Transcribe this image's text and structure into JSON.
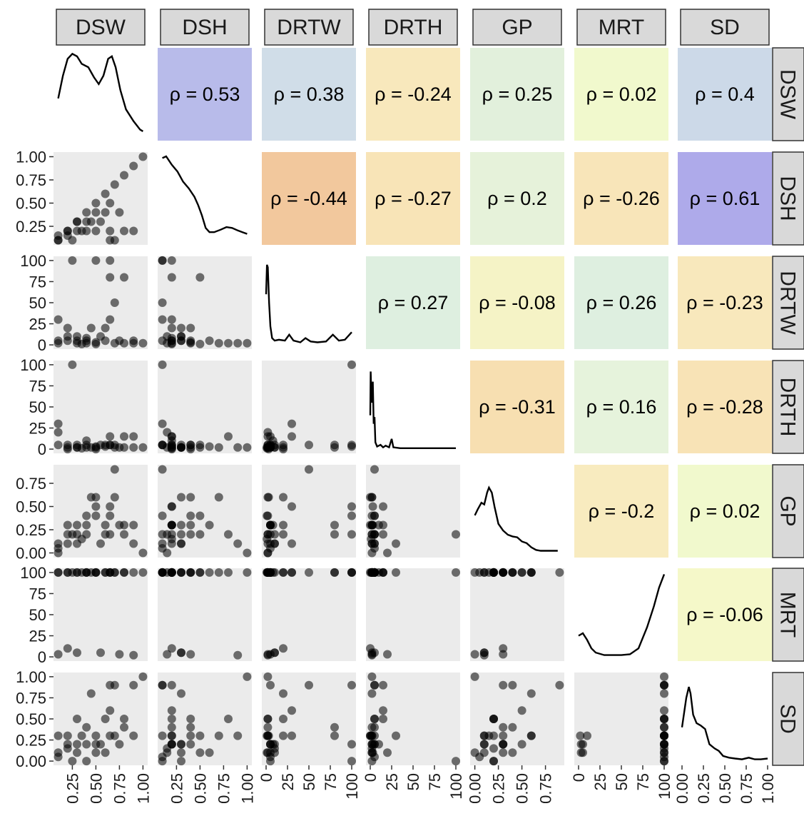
{
  "chart_data": {
    "type": "scatter",
    "variables": [
      "DSW",
      "DSH",
      "DRTW",
      "DRTH",
      "GP",
      "MRT",
      "SD"
    ],
    "correlations": [
      {
        "row": "DSW",
        "col": "DSH",
        "label": "ρ = 0.53",
        "value": 0.53,
        "color": "#b8bbea"
      },
      {
        "row": "DSW",
        "col": "DRTW",
        "label": "ρ = 0.38",
        "value": 0.38,
        "color": "#d0dde8"
      },
      {
        "row": "DSW",
        "col": "DRTH",
        "label": "ρ = -0.24",
        "value": -0.24,
        "color": "#f8e8bc"
      },
      {
        "row": "DSW",
        "col": "GP",
        "label": "ρ = 0.25",
        "value": 0.25,
        "color": "#e2f0dc"
      },
      {
        "row": "DSW",
        "col": "MRT",
        "label": "ρ = 0.02",
        "value": 0.02,
        "color": "#f1f9cd"
      },
      {
        "row": "DSW",
        "col": "SD",
        "label": "ρ = 0.4",
        "value": 0.4,
        "color": "#ccd9e8"
      },
      {
        "row": "DSH",
        "col": "DRTW",
        "label": "ρ = -0.44",
        "value": -0.44,
        "color": "#f2c89d"
      },
      {
        "row": "DSH",
        "col": "DRTH",
        "label": "ρ = -0.27",
        "value": -0.27,
        "color": "#f8e4b7"
      },
      {
        "row": "DSH",
        "col": "GP",
        "label": "ρ = 0.2",
        "value": 0.2,
        "color": "#e6f2da"
      },
      {
        "row": "DSH",
        "col": "MRT",
        "label": "ρ = -0.26",
        "value": -0.26,
        "color": "#f8e5b9"
      },
      {
        "row": "DSH",
        "col": "SD",
        "label": "ρ = 0.61",
        "value": 0.61,
        "color": "#aeaaea"
      },
      {
        "row": "DRTW",
        "col": "DRTH",
        "label": "ρ = 0.27",
        "value": 0.27,
        "color": "#deefe0"
      },
      {
        "row": "DRTW",
        "col": "GP",
        "label": "ρ = -0.08",
        "value": -0.08,
        "color": "#f5f3c6"
      },
      {
        "row": "DRTW",
        "col": "MRT",
        "label": "ρ = 0.26",
        "value": 0.26,
        "color": "#deefe0"
      },
      {
        "row": "DRTW",
        "col": "SD",
        "label": "ρ = -0.23",
        "value": -0.23,
        "color": "#f8e8bc"
      },
      {
        "row": "DRTH",
        "col": "GP",
        "label": "ρ = -0.31",
        "value": -0.31,
        "color": "#f7dfb1"
      },
      {
        "row": "DRTH",
        "col": "MRT",
        "label": "ρ = 0.16",
        "value": 0.16,
        "color": "#e6f3dc"
      },
      {
        "row": "DRTH",
        "col": "SD",
        "label": "ρ = -0.28",
        "value": -0.28,
        "color": "#f8e3b6"
      },
      {
        "row": "GP",
        "col": "MRT",
        "label": "ρ = -0.2",
        "value": -0.2,
        "color": "#f8ebbf"
      },
      {
        "row": "GP",
        "col": "SD",
        "label": "ρ = 0.02",
        "value": 0.02,
        "color": "#f1f9cd"
      },
      {
        "row": "MRT",
        "col": "SD",
        "label": "ρ = -0.06",
        "value": -0.06,
        "color": "#f5f8c9"
      }
    ],
    "axes": {
      "DSW": {
        "range": [
          0.05,
          1.05
        ],
        "ticks": [
          0.25,
          0.5,
          0.75,
          1.0
        ],
        "tick_labels": [
          "0.25",
          "0.50",
          "0.75",
          "1.00"
        ]
      },
      "DSH": {
        "range": [
          0.05,
          1.05
        ],
        "ticks": [
          0.25,
          0.5,
          0.75,
          1.0
        ],
        "tick_labels": [
          "0.25",
          "0.50",
          "0.75",
          "1.00"
        ]
      },
      "DRTW": {
        "range": [
          -5,
          105
        ],
        "ticks": [
          0,
          25,
          50,
          75,
          100
        ],
        "tick_labels": [
          "0",
          "25",
          "50",
          "75",
          "100"
        ]
      },
      "DRTH": {
        "range": [
          -5,
          105
        ],
        "ticks": [
          0,
          25,
          50,
          75,
          100
        ],
        "tick_labels": [
          "0",
          "25",
          "50",
          "75",
          "100"
        ]
      },
      "GP": {
        "range": [
          -0.05,
          0.95
        ],
        "ticks": [
          0,
          0.25,
          0.5,
          0.75
        ],
        "tick_labels": [
          "0.00",
          "0.25",
          "0.50",
          "0.75"
        ]
      },
      "MRT": {
        "range": [
          -5,
          105
        ],
        "ticks": [
          0,
          25,
          50,
          75,
          100
        ],
        "tick_labels": [
          "0",
          "25",
          "50",
          "75",
          "100"
        ]
      },
      "SD": {
        "range": [
          -0.05,
          1.05
        ],
        "ticks": [
          0,
          0.25,
          0.5,
          0.75,
          1.0
        ],
        "tick_labels": [
          "0.00",
          "0.25",
          "0.50",
          "0.75",
          "1.00"
        ]
      }
    },
    "densities": {
      "DSW": [
        [
          0.1,
          0.45
        ],
        [
          0.15,
          0.72
        ],
        [
          0.2,
          0.92
        ],
        [
          0.25,
          0.98
        ],
        [
          0.3,
          0.95
        ],
        [
          0.35,
          0.86
        ],
        [
          0.42,
          0.82
        ],
        [
          0.48,
          0.7
        ],
        [
          0.53,
          0.62
        ],
        [
          0.58,
          0.72
        ],
        [
          0.63,
          0.92
        ],
        [
          0.67,
          0.95
        ],
        [
          0.71,
          0.82
        ],
        [
          0.76,
          0.55
        ],
        [
          0.82,
          0.32
        ],
        [
          0.9,
          0.18
        ],
        [
          0.97,
          0.08
        ],
        [
          1.0,
          0.06
        ]
      ],
      "DSH": [
        [
          0.1,
          0.98
        ],
        [
          0.14,
          1.0
        ],
        [
          0.2,
          0.9
        ],
        [
          0.26,
          0.82
        ],
        [
          0.32,
          0.7
        ],
        [
          0.38,
          0.62
        ],
        [
          0.44,
          0.52
        ],
        [
          0.48,
          0.42
        ],
        [
          0.52,
          0.3
        ],
        [
          0.56,
          0.15
        ],
        [
          0.6,
          0.1
        ],
        [
          0.65,
          0.1
        ],
        [
          0.72,
          0.13
        ],
        [
          0.78,
          0.16
        ],
        [
          0.84,
          0.15
        ],
        [
          0.9,
          0.12
        ],
        [
          0.95,
          0.1
        ],
        [
          1.0,
          0.08
        ]
      ],
      "DRTW": [
        [
          0,
          0.6
        ],
        [
          1,
          0.95
        ],
        [
          2,
          0.92
        ],
        [
          3.5,
          0.5
        ],
        [
          5,
          0.22
        ],
        [
          7,
          0.08
        ],
        [
          10,
          0.05
        ],
        [
          15,
          0.06
        ],
        [
          22,
          0.05
        ],
        [
          27,
          0.12
        ],
        [
          32,
          0.05
        ],
        [
          40,
          0.03
        ],
        [
          46,
          0.08
        ],
        [
          52,
          0.04
        ],
        [
          60,
          0.03
        ],
        [
          70,
          0.04
        ],
        [
          78,
          0.12
        ],
        [
          85,
          0.05
        ],
        [
          92,
          0.06
        ],
        [
          100,
          0.15
        ]
      ],
      "DRTH": [
        [
          0,
          0.4
        ],
        [
          0.5,
          0.92
        ],
        [
          1,
          0.75
        ],
        [
          2,
          0.55
        ],
        [
          3,
          0.8
        ],
        [
          4,
          0.3
        ],
        [
          5,
          0.38
        ],
        [
          6,
          0.08
        ],
        [
          8,
          0.03
        ],
        [
          12,
          0.05
        ],
        [
          15,
          0.02
        ],
        [
          18,
          0.04
        ],
        [
          22,
          0.02
        ],
        [
          25,
          0.12
        ],
        [
          27,
          0.02
        ],
        [
          35,
          0.01
        ],
        [
          50,
          0.01
        ],
        [
          75,
          0.01
        ],
        [
          100,
          0.01
        ]
      ],
      "GP": [
        [
          0,
          0.45
        ],
        [
          0.03,
          0.52
        ],
        [
          0.07,
          0.6
        ],
        [
          0.1,
          0.58
        ],
        [
          0.13,
          0.72
        ],
        [
          0.15,
          0.78
        ],
        [
          0.18,
          0.72
        ],
        [
          0.21,
          0.55
        ],
        [
          0.25,
          0.35
        ],
        [
          0.3,
          0.27
        ],
        [
          0.35,
          0.22
        ],
        [
          0.4,
          0.2
        ],
        [
          0.45,
          0.19
        ],
        [
          0.5,
          0.14
        ],
        [
          0.55,
          0.12
        ],
        [
          0.6,
          0.07
        ],
        [
          0.65,
          0.04
        ],
        [
          0.7,
          0.03
        ],
        [
          0.8,
          0.03
        ],
        [
          0.88,
          0.03
        ]
      ],
      "MRT": [
        [
          0,
          0.25
        ],
        [
          5,
          0.28
        ],
        [
          10,
          0.2
        ],
        [
          15,
          0.1
        ],
        [
          20,
          0.05
        ],
        [
          30,
          0.02
        ],
        [
          40,
          0.02
        ],
        [
          50,
          0.02
        ],
        [
          60,
          0.03
        ],
        [
          70,
          0.1
        ],
        [
          80,
          0.35
        ],
        [
          88,
          0.6
        ],
        [
          94,
          0.82
        ],
        [
          100,
          0.98
        ]
      ],
      "SD": [
        [
          0,
          0.4
        ],
        [
          0.05,
          0.75
        ],
        [
          0.08,
          0.88
        ],
        [
          0.1,
          0.8
        ],
        [
          0.13,
          0.55
        ],
        [
          0.17,
          0.45
        ],
        [
          0.22,
          0.42
        ],
        [
          0.27,
          0.38
        ],
        [
          0.32,
          0.2
        ],
        [
          0.38,
          0.15
        ],
        [
          0.43,
          0.12
        ],
        [
          0.48,
          0.06
        ],
        [
          0.55,
          0.04
        ],
        [
          0.62,
          0.03
        ],
        [
          0.7,
          0.02
        ],
        [
          0.78,
          0.04
        ],
        [
          0.85,
          0.02
        ],
        [
          0.92,
          0.02
        ],
        [
          1.0,
          0.03
        ]
      ]
    },
    "points": [
      {
        "DSW": 0.1,
        "DSH": 0.1,
        "DRTW": 5,
        "DRTH": 5,
        "GP": 0.05,
        "MRT": 100,
        "SD": 0.05
      },
      {
        "DSW": 0.1,
        "DSH": 0.1,
        "DRTW": 30,
        "DRTH": 30,
        "GP": 0.1,
        "MRT": 100,
        "SD": 0.3
      },
      {
        "DSW": 0.1,
        "DSH": 0.15,
        "DRTW": 2,
        "DRTH": 20,
        "GP": 0.0,
        "MRT": 3,
        "SD": 0.1
      },
      {
        "DSW": 0.2,
        "DSH": 0.2,
        "DRTW": 5,
        "DRTH": 5,
        "GP": 0.1,
        "MRT": 100,
        "SD": 0.2
      },
      {
        "DSW": 0.2,
        "DSH": 0.15,
        "DRTW": 10,
        "DRTH": 2,
        "GP": 0.2,
        "MRT": 100,
        "SD": 0.15
      },
      {
        "DSW": 0.2,
        "DSH": 0.2,
        "DRTW": 20,
        "DRTH": 0,
        "GP": 0.3,
        "MRT": 10,
        "SD": 0.3
      },
      {
        "DSW": 0.25,
        "DSH": 0.1,
        "DRTW": 100,
        "DRTH": 100,
        "GP": 0.2,
        "MRT": 100,
        "SD": 0.0
      },
      {
        "DSW": 0.3,
        "DSH": 0.2,
        "DRTW": 2,
        "DRTH": 5,
        "GP": 0.2,
        "MRT": 100,
        "SD": 0.5
      },
      {
        "DSW": 0.3,
        "DSH": 0.3,
        "DRTW": 5,
        "DRTH": 2,
        "GP": 0.3,
        "MRT": 100,
        "SD": 0.2
      },
      {
        "DSW": 0.3,
        "DSH": 0.3,
        "DRTW": 10,
        "DRTH": 2,
        "GP": 0.1,
        "MRT": 5,
        "SD": 0.1
      },
      {
        "DSW": 0.35,
        "DSH": 0.2,
        "DRTW": 1,
        "DRTH": 1,
        "GP": 0.15,
        "MRT": 100,
        "SD": 0.3
      },
      {
        "DSW": 0.4,
        "DSH": 0.4,
        "DRTW": 2,
        "DRTH": 5,
        "GP": 0.4,
        "MRT": 100,
        "SD": 0.4
      },
      {
        "DSW": 0.4,
        "DSH": 0.3,
        "DRTW": 5,
        "DRTH": 2,
        "GP": 0.2,
        "MRT": 100,
        "SD": 0.0
      },
      {
        "DSW": 0.4,
        "DSH": 0.2,
        "DRTW": 8,
        "DRTH": 10,
        "GP": 0.3,
        "MRT": 100,
        "SD": 0.2
      },
      {
        "DSW": 0.45,
        "DSH": 0.3,
        "DRTW": 20,
        "DRTH": 2,
        "GP": 0.6,
        "MRT": 100,
        "SD": 0.8
      },
      {
        "DSW": 0.5,
        "DSH": 0.5,
        "DRTW": 1,
        "DRTH": 2,
        "GP": 0.4,
        "MRT": 100,
        "SD": 0.1
      },
      {
        "DSW": 0.5,
        "DSH": 0.2,
        "DRTW": 100,
        "DRTH": 3,
        "GP": 0.5,
        "MRT": 100,
        "SD": 0.2
      },
      {
        "DSW": 0.5,
        "DSH": 0.4,
        "DRTW": 3,
        "DRTH": 0,
        "GP": 0.6,
        "MRT": 100,
        "SD": 0.3
      },
      {
        "DSW": 0.55,
        "DSH": 0.3,
        "DRTW": 10,
        "DRTH": 5,
        "GP": 0.1,
        "MRT": 5,
        "SD": 0.2
      },
      {
        "DSW": 0.6,
        "DSH": 0.6,
        "DRTW": 5,
        "DRTH": 3,
        "GP": 0.3,
        "MRT": 100,
        "SD": 0.1
      },
      {
        "DSW": 0.6,
        "DSH": 0.4,
        "DRTW": 20,
        "DRTH": 5,
        "GP": 0.2,
        "MRT": 100,
        "SD": 0.5
      },
      {
        "DSW": 0.65,
        "DSH": 0.1,
        "DRTW": 100,
        "DRTH": 5,
        "GP": 0.4,
        "MRT": 100,
        "SD": 0.9
      },
      {
        "DSW": 0.65,
        "DSH": 0.5,
        "DRTW": 80,
        "DRTH": 5,
        "GP": 0.2,
        "MRT": 100,
        "SD": 0.3
      },
      {
        "DSW": 0.65,
        "DSH": 0.2,
        "DRTW": 30,
        "DRTH": 15,
        "GP": 0.5,
        "MRT": 100,
        "SD": 0.6
      },
      {
        "DSW": 0.7,
        "DSH": 0.7,
        "DRTW": 2,
        "DRTH": 2,
        "GP": 0.6,
        "MRT": 100,
        "SD": 0.3
      },
      {
        "DSW": 0.7,
        "DSH": 0.1,
        "DRTW": 50,
        "DRTH": 5,
        "GP": 0.9,
        "MRT": 100,
        "SD": 0.9
      },
      {
        "DSW": 0.75,
        "DSH": 0.4,
        "DRTW": 5,
        "DRTH": 2,
        "GP": 0.3,
        "MRT": 3,
        "SD": 0.2
      },
      {
        "DSW": 0.8,
        "DSH": 0.8,
        "DRTW": 2,
        "DRTH": 15,
        "GP": 0.2,
        "MRT": 100,
        "SD": 0.5
      },
      {
        "DSW": 0.8,
        "DSH": 0.2,
        "DRTW": 80,
        "DRTH": 2,
        "GP": 0.3,
        "MRT": 100,
        "SD": 0.4
      },
      {
        "DSW": 0.9,
        "DSH": 0.2,
        "DRTW": 5,
        "DRTH": 15,
        "GP": 0.3,
        "MRT": 100,
        "SD": 0.9
      },
      {
        "DSW": 0.9,
        "DSH": 0.9,
        "DRTW": 2,
        "DRTH": 2,
        "GP": 0.1,
        "MRT": 2,
        "SD": 0.3
      },
      {
        "DSW": 1.0,
        "DSH": 1.0,
        "DRTW": 2,
        "DRTH": 2,
        "GP": 0.0,
        "MRT": 100,
        "SD": 1.0
      }
    ]
  }
}
